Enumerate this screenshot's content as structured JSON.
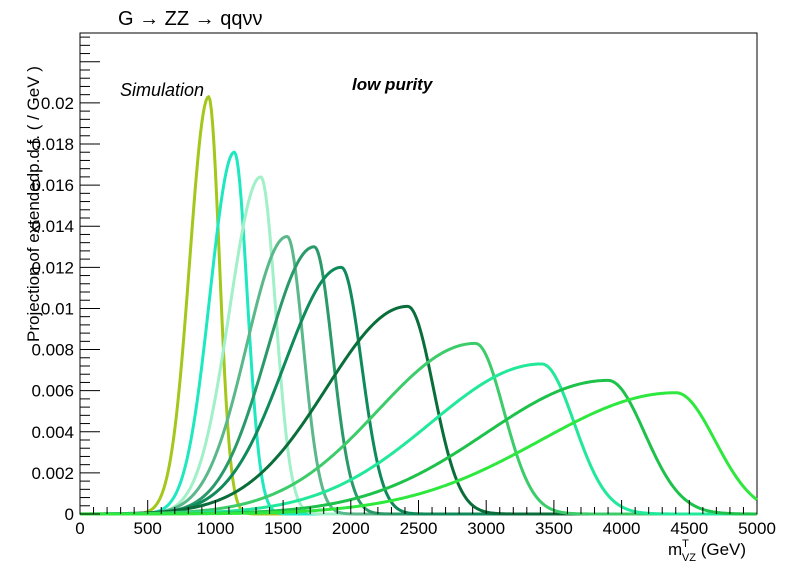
{
  "chart_data": {
    "type": "line",
    "title": "G → ZZ → qqνν",
    "xlabel": "m",
    "xlabel_sup": "T",
    "xlabel_sub": "VZ",
    "xlabel_unit": " (GeV)",
    "ylabel": "Projection of extendedp.d.f. ( / GeV )",
    "xlim": [
      0,
      5000
    ],
    "ylim": [
      0,
      0.0234
    ],
    "x_ticks": [
      0,
      500,
      1000,
      1500,
      2000,
      2500,
      3000,
      3500,
      4000,
      4500,
      5000
    ],
    "x_tick_labels": [
      "0",
      "500",
      "1000",
      "1500",
      "2000",
      "2500",
      "3000",
      "3500",
      "4000",
      "4500",
      "5000"
    ],
    "y_ticks": [
      0,
      0.002,
      0.004,
      0.006,
      0.008,
      0.01,
      0.012,
      0.014,
      0.016,
      0.018,
      0.02
    ],
    "y_tick_labels": [
      "0",
      "0.002",
      "0.004",
      "0.006",
      "0.008",
      "0.01",
      "0.012",
      "0.014",
      "0.016",
      "0.018",
      "0.02"
    ],
    "annotations": [
      "Simulation",
      "low purity"
    ],
    "grid": false,
    "series": [
      {
        "peak_x": 950,
        "peak_y": 0.0203,
        "sigma_left": 140,
        "sigma_right": 80,
        "color": "#a3c71a"
      },
      {
        "peak_x": 1140,
        "peak_y": 0.0176,
        "sigma_left": 180,
        "sigma_right": 95,
        "color": "#1de8c0"
      },
      {
        "peak_x": 1335,
        "peak_y": 0.0164,
        "sigma_left": 230,
        "sigma_right": 110,
        "color": "#a0f0c8"
      },
      {
        "peak_x": 1530,
        "peak_y": 0.0135,
        "sigma_left": 300,
        "sigma_right": 120,
        "color": "#5ab88a"
      },
      {
        "peak_x": 1730,
        "peak_y": 0.013,
        "sigma_left": 350,
        "sigma_right": 135,
        "color": "#2a9a6a"
      },
      {
        "peak_x": 1930,
        "peak_y": 0.012,
        "sigma_left": 420,
        "sigma_right": 150,
        "color": "#0f8a5a"
      },
      {
        "peak_x": 2420,
        "peak_y": 0.0101,
        "sigma_left": 600,
        "sigma_right": 190,
        "color": "#0a6e3a"
      },
      {
        "peak_x": 2920,
        "peak_y": 0.0083,
        "sigma_left": 720,
        "sigma_right": 210,
        "color": "#3dcc6a"
      },
      {
        "peak_x": 3410,
        "peak_y": 0.0073,
        "sigma_left": 820,
        "sigma_right": 240,
        "color": "#22e89a"
      },
      {
        "peak_x": 3900,
        "peak_y": 0.0065,
        "sigma_left": 900,
        "sigma_right": 270,
        "color": "#1ec24a"
      },
      {
        "peak_x": 4400,
        "peak_y": 0.0059,
        "sigma_left": 1000,
        "sigma_right": 290,
        "color": "#2ee83e"
      }
    ]
  }
}
